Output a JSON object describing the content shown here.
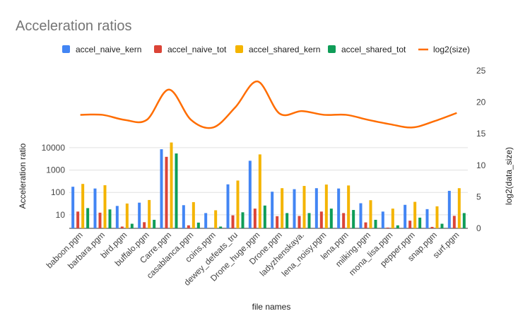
{
  "chart_data": {
    "type": "bar",
    "title": "Acceleration ratios",
    "xlabel": "file names",
    "ylabel": "Acceleration ratio",
    "y2label": "log2(data_size)",
    "yscale": "log",
    "ylim": [
      2.5,
      30000
    ],
    "y_ticks": [
      10,
      100,
      1000,
      10000
    ],
    "y_tick_labels": [
      "10",
      "100",
      "1000",
      "10000"
    ],
    "y2lim": [
      0,
      25
    ],
    "y2_ticks": [
      0,
      5,
      10,
      15,
      20,
      25
    ],
    "y2_tick_labels": [
      "0",
      "5",
      "10",
      "15",
      "20",
      "25"
    ],
    "legend_position": "top",
    "grid": true,
    "categories": [
      "baboon.pgm",
      "barbara.pgm",
      "bird.pgm",
      "buffalo.pgm",
      "Carre.pgm",
      "casablanca.pgm",
      "coins.pgm",
      "dewey_defeats_tru",
      "Drone_huge.pgm",
      "Drone.pgm",
      "ladyzhenskaya.",
      "lena_noisy.pgm",
      "lena.pgm",
      "milking.pgm",
      "mona_lisa.pgm",
      "pepper.pgm",
      "snap.pgm",
      "surf.pgm"
    ],
    "series": [
      {
        "name": "accel_naive_kern",
        "color": "#4285f4",
        "axis": "left",
        "values": [
          180,
          150,
          25,
          35,
          8500,
          27,
          12,
          230,
          2600,
          108,
          140,
          155,
          150,
          33,
          14,
          28,
          18,
          118
        ]
      },
      {
        "name": "accel_naive_tot",
        "color": "#db4437",
        "axis": "left",
        "values": [
          14,
          12.5,
          3,
          4.7,
          3900,
          3.4,
          2.2,
          9.5,
          19,
          8.7,
          8.9,
          14,
          12,
          4.6,
          2.7,
          5.5,
          2.9,
          9
        ]
      },
      {
        "name": "accel_shared_kern",
        "color": "#f4b400",
        "axis": "left",
        "values": [
          240,
          210,
          32,
          46,
          17000,
          37,
          16,
          340,
          5000,
          155,
          195,
          225,
          205,
          45,
          19,
          38,
          24,
          155
        ]
      },
      {
        "name": "accel_shared_tot",
        "color": "#0f9d58",
        "axis": "left",
        "values": [
          20,
          17.5,
          4,
          6,
          5500,
          4.5,
          3,
          13,
          26,
          12,
          12,
          19,
          16.5,
          6,
          3.4,
          7.5,
          4,
          12
        ]
      },
      {
        "name": "log2(size)",
        "color": "#ff6d01",
        "axis": "right",
        "type": "line",
        "values": [
          18,
          18,
          17.2,
          17.2,
          22,
          17.2,
          16,
          19.2,
          23.3,
          18.2,
          18.6,
          18,
          18,
          17.2,
          16.5,
          16,
          17,
          18.3
        ]
      }
    ]
  }
}
